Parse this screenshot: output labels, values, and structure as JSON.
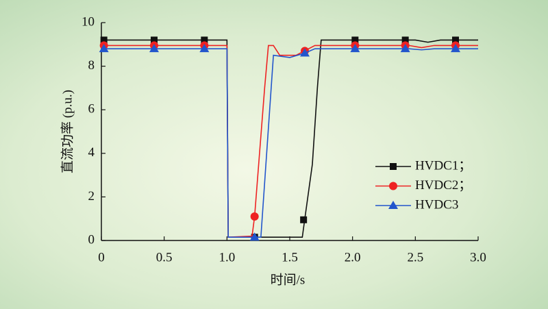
{
  "chart_data": {
    "type": "line",
    "xlabel": "时间/s",
    "ylabel": "直流功率 (p.u.)",
    "xlim": [
      0,
      3.0
    ],
    "ylim": [
      0,
      10
    ],
    "xticks": [
      0,
      0.5,
      {
        "value": 1.0,
        "label": "1.0"
      },
      1.5,
      {
        "value": 2.0,
        "label": "2.0"
      },
      2.5,
      {
        "value": 3.0,
        "label": "3.0"
      }
    ],
    "yticks": [
      0,
      2,
      4,
      6,
      8,
      10
    ],
    "legend": "right",
    "series": [
      {
        "name": "HVDC1；",
        "color": "#111111",
        "marker": "square",
        "x": [
          0,
          1.0,
          1.01,
          1.6,
          1.62,
          1.68,
          1.72,
          1.75,
          2.5,
          2.6,
          2.7,
          3.0
        ],
        "values": [
          9.2,
          9.2,
          0.15,
          0.15,
          1.0,
          3.5,
          7.0,
          9.2,
          9.2,
          9.1,
          9.2,
          9.2
        ],
        "markers": {
          "x": [
            0.02,
            0.42,
            0.82,
            1.22,
            1.61,
            2.02,
            2.42,
            2.82
          ],
          "values": [
            9.2,
            9.2,
            9.2,
            0.15,
            0.95,
            9.2,
            9.2,
            9.2
          ]
        }
      },
      {
        "name": "HVDC2；",
        "color": "#ee2222",
        "marker": "circle",
        "x": [
          0,
          1.0,
          1.01,
          1.2,
          1.22,
          1.3,
          1.33,
          1.37,
          1.42,
          1.55,
          1.6,
          1.7,
          2.45,
          2.55,
          2.65,
          3.0
        ],
        "values": [
          8.95,
          8.95,
          0.15,
          0.2,
          1.1,
          7.0,
          8.95,
          8.95,
          8.5,
          8.5,
          8.65,
          8.95,
          8.95,
          8.85,
          8.95,
          8.95
        ],
        "markers": {
          "x": [
            0.02,
            0.42,
            0.82,
            1.22,
            1.62,
            2.02,
            2.42,
            2.82
          ],
          "values": [
            8.95,
            8.95,
            8.95,
            1.1,
            8.7,
            8.95,
            8.95,
            8.95
          ]
        }
      },
      {
        "name": "HVDC3",
        "color": "#2255cc",
        "marker": "triangle",
        "x": [
          0,
          1.0,
          1.01,
          1.27,
          1.37,
          1.5,
          1.62,
          1.7,
          2.45,
          2.55,
          2.65,
          3.0
        ],
        "values": [
          8.8,
          8.8,
          0.15,
          0.15,
          8.5,
          8.4,
          8.6,
          8.8,
          8.8,
          8.75,
          8.8,
          8.8
        ],
        "markers": {
          "x": [
            0.02,
            0.42,
            0.82,
            1.22,
            1.62,
            2.02,
            2.42,
            2.82
          ],
          "values": [
            8.8,
            8.8,
            8.8,
            0.15,
            8.6,
            8.8,
            8.8,
            8.8
          ]
        }
      }
    ]
  }
}
